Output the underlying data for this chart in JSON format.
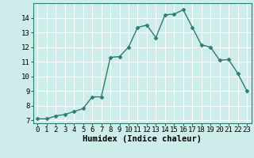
{
  "x": [
    0,
    1,
    2,
    3,
    4,
    5,
    6,
    7,
    8,
    9,
    10,
    11,
    12,
    13,
    14,
    15,
    16,
    17,
    18,
    19,
    20,
    21,
    22,
    23
  ],
  "y": [
    7.1,
    7.1,
    7.3,
    7.4,
    7.6,
    7.8,
    8.6,
    8.6,
    11.3,
    11.35,
    12.0,
    13.35,
    13.5,
    12.65,
    14.2,
    14.25,
    14.55,
    13.35,
    12.15,
    12.0,
    11.1,
    11.15,
    10.2,
    9.0
  ],
  "line_color": "#2e7d6e",
  "marker": "D",
  "markersize": 2.5,
  "linewidth": 1.0,
  "bg_color": "#cdecea",
  "grid_color": "#ffffff",
  "xlabel": "Humidex (Indice chaleur)",
  "xlim": [
    -0.5,
    23.5
  ],
  "ylim": [
    6.8,
    15.0
  ],
  "yticks": [
    7,
    8,
    9,
    10,
    11,
    12,
    13,
    14
  ],
  "xticks": [
    0,
    1,
    2,
    3,
    4,
    5,
    6,
    7,
    8,
    9,
    10,
    11,
    12,
    13,
    14,
    15,
    16,
    17,
    18,
    19,
    20,
    21,
    22,
    23
  ],
  "tick_fontsize": 6.5,
  "xlabel_fontsize": 7.5
}
